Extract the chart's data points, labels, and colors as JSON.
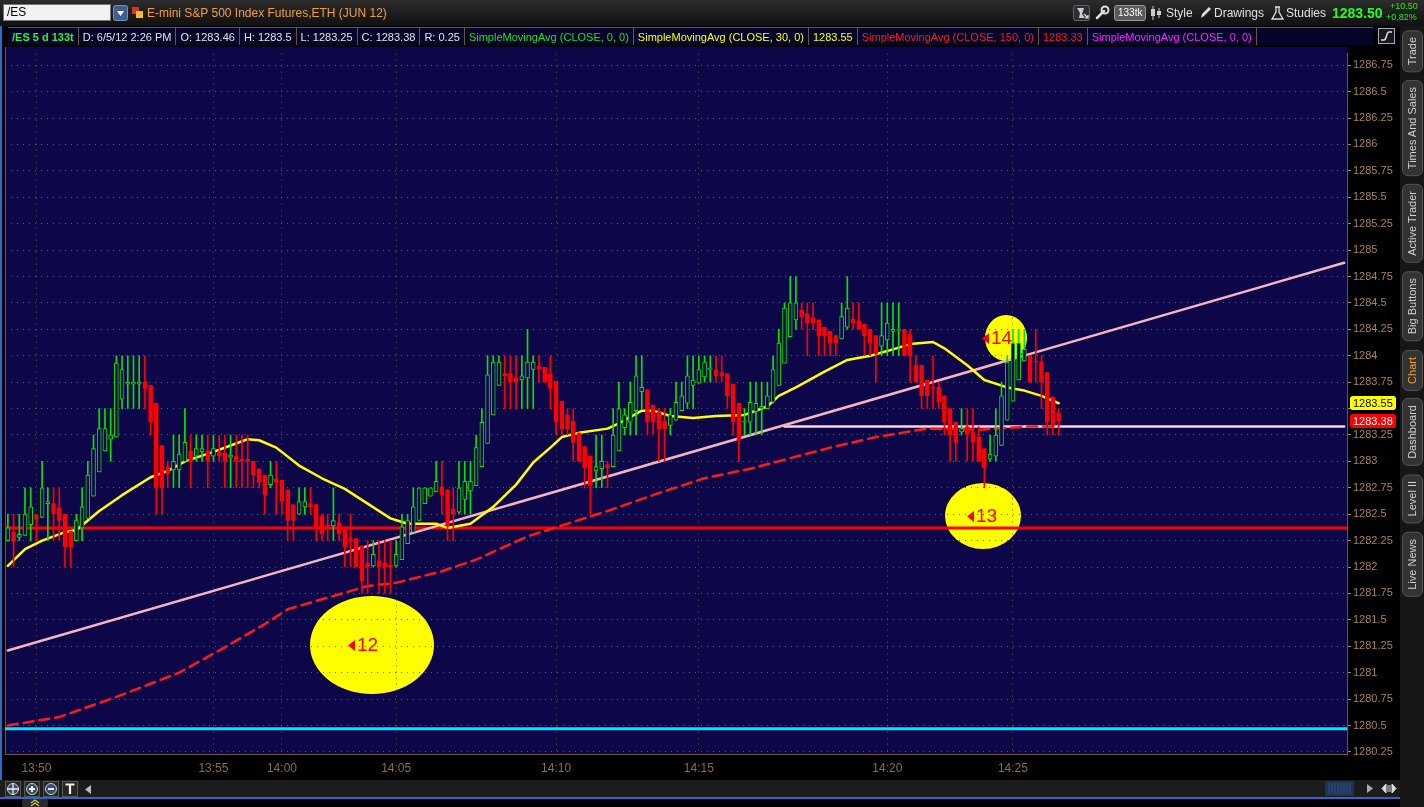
{
  "chart_data": {
    "type": "candlestick",
    "title": "E-mini S&P 500 Index Futures,ETH (JUN 12)",
    "categories": [
      null,
      null,
      null,
      null,
      null,
      "13:50",
      null,
      null,
      null,
      null,
      null,
      null,
      null,
      null,
      null,
      null,
      null,
      null,
      null,
      null,
      null,
      null,
      null,
      null,
      null,
      null,
      null,
      null,
      null,
      null,
      null,
      null,
      null,
      null,
      null,
      null,
      "13:55",
      null,
      null,
      null,
      null,
      null,
      null,
      null,
      null,
      null,
      null,
      null,
      "14:00",
      null,
      null,
      null,
      null,
      null,
      null,
      null,
      null,
      null,
      null,
      null,
      null,
      null,
      null,
      null,
      null,
      null,
      null,
      null,
      "14:05",
      null,
      null,
      null,
      null,
      null,
      null,
      null,
      null,
      null,
      null,
      null,
      null,
      null,
      null,
      null,
      null,
      null,
      null,
      null,
      null,
      null,
      null,
      null,
      null,
      null,
      null,
      null,
      "14:10",
      null,
      null,
      null,
      null,
      null,
      null,
      null,
      null,
      null,
      null,
      null,
      null,
      null,
      null,
      null,
      null,
      null,
      null,
      null,
      null,
      null,
      null,
      null,
      null,
      "14:15",
      null,
      null,
      null,
      null,
      null,
      null,
      null,
      null,
      null,
      null,
      null,
      null,
      null,
      null,
      null,
      null,
      null,
      null,
      null,
      null,
      null,
      null,
      null,
      null,
      null,
      null,
      null,
      null,
      null,
      null,
      null,
      null,
      "14:20",
      null,
      null,
      null,
      null,
      null,
      null,
      null,
      null,
      null,
      null,
      null,
      null,
      null,
      null,
      null,
      null,
      null,
      null,
      null,
      null,
      null,
      "14:25",
      null,
      null,
      null,
      null,
      null,
      null,
      null,
      null,
      null,
      null,
      null,
      null,
      null,
      null,
      null,
      null,
      null,
      null,
      null,
      null,
      null,
      null,
      null,
      null,
      null,
      null,
      null,
      null,
      null,
      null,
      null,
      null,
      null,
      null,
      null,
      null,
      null,
      null,
      null,
      null,
      null,
      null,
      null,
      null,
      null,
      null,
      null,
      null,
      null,
      null,
      null,
      null,
      null,
      null,
      null,
      null,
      null,
      null
    ],
    "ohlc": [
      [
        1282.25,
        1282.5,
        1282.25,
        1282.37
      ],
      [
        1282.33,
        1282.5,
        1282.0,
        1282.25
      ],
      [
        1282.28,
        1282.5,
        1282.25,
        1282.31
      ],
      [
        1282.3,
        1282.75,
        1282.3,
        1282.5
      ],
      [
        1282.4,
        1282.75,
        1282.25,
        1282.57
      ],
      [
        1282.49,
        1282.5,
        1282.25,
        1282.45
      ],
      [
        1282.47,
        1283.0,
        1282.47,
        1282.75
      ],
      [
        1282.6,
        1282.75,
        1282.25,
        1282.62
      ],
      [
        1282.6,
        1282.75,
        1282.25,
        1282.5
      ],
      [
        1282.56,
        1282.75,
        1282.25,
        1282.44
      ],
      [
        1282.5,
        1282.5,
        1282.0,
        1282.19
      ],
      [
        1282.34,
        1282.34,
        1282.0,
        1282.19
      ],
      [
        1282.25,
        1282.5,
        1282.25,
        1282.44
      ],
      [
        1282.37,
        1282.75,
        1282.25,
        1282.57
      ],
      [
        1282.46,
        1283.0,
        1282.46,
        1282.87
      ],
      [
        1282.67,
        1283.25,
        1282.67,
        1283.12
      ],
      [
        1282.9,
        1283.5,
        1282.9,
        1283.31
      ],
      [
        1283.1,
        1283.5,
        1283.1,
        1283.31
      ],
      [
        1283.21,
        1283.5,
        1283.0,
        1283.25
      ],
      [
        1283.23,
        1284.0,
        1283.23,
        1283.93
      ],
      [
        1283.59,
        1284.0,
        1283.5,
        1283.87
      ],
      [
        1283.73,
        1284.0,
        1283.5,
        1283.75
      ],
      [
        1283.73,
        1284.0,
        1283.5,
        1283.75
      ],
      [
        1283.73,
        1284.0,
        1283.5,
        1283.75
      ],
      [
        1283.75,
        1284.0,
        1283.5,
        1283.69
      ],
      [
        1283.72,
        1283.72,
        1283.25,
        1283.37
      ],
      [
        1283.55,
        1283.55,
        1282.5,
        1282.75
      ],
      [
        1283.15,
        1283.15,
        1282.5,
        1282.75
      ],
      [
        1282.95,
        1283.0,
        1282.75,
        1282.88
      ],
      [
        1282.92,
        1283.25,
        1282.75,
        1283.0
      ],
      [
        1282.92,
        1283.25,
        1282.75,
        1283.07
      ],
      [
        1283.0,
        1283.5,
        1283.0,
        1283.18
      ],
      [
        1283.1,
        1283.25,
        1282.75,
        1283.0
      ],
      [
        1283.05,
        1283.25,
        1283.0,
        1283.12
      ],
      [
        1283.09,
        1283.25,
        1283.0,
        1283.12
      ],
      [
        1283.1,
        1283.25,
        1282.75,
        1283.0
      ],
      [
        1283.05,
        1283.25,
        1283.0,
        1283.12
      ],
      [
        1283.09,
        1283.25,
        1283.0,
        1283.05
      ],
      [
        1283.08,
        1283.25,
        1282.75,
        1283.0
      ],
      [
        1283.04,
        1283.25,
        1282.75,
        1283.06
      ],
      [
        1283.05,
        1283.25,
        1282.75,
        1283.0
      ],
      [
        1283.02,
        1283.25,
        1282.75,
        1283.0
      ],
      [
        1283.02,
        1283.25,
        1282.75,
        1283.0
      ],
      [
        1283.0,
        1283.0,
        1282.75,
        1282.87
      ],
      [
        1282.93,
        1282.93,
        1282.75,
        1282.8
      ],
      [
        1282.87,
        1282.87,
        1282.5,
        1282.68
      ],
      [
        1282.78,
        1283.0,
        1282.75,
        1282.87
      ],
      [
        1282.83,
        1283.0,
        1282.5,
        1282.8
      ],
      [
        1282.82,
        1282.82,
        1282.5,
        1282.62
      ],
      [
        1282.73,
        1282.73,
        1282.25,
        1282.44
      ],
      [
        1282.59,
        1282.59,
        1282.25,
        1282.44
      ],
      [
        1282.5,
        1282.75,
        1282.5,
        1282.62
      ],
      [
        1282.57,
        1282.75,
        1282.5,
        1282.62
      ],
      [
        1282.6,
        1282.75,
        1282.5,
        1282.57
      ],
      [
        1282.59,
        1282.59,
        1282.25,
        1282.38
      ],
      [
        1282.48,
        1282.5,
        1282.25,
        1282.31
      ],
      [
        1282.4,
        1282.5,
        1282.25,
        1282.38
      ],
      [
        1282.39,
        1282.75,
        1282.25,
        1282.44
      ],
      [
        1282.42,
        1282.5,
        1282.25,
        1282.31
      ],
      [
        1282.36,
        1282.36,
        1282.0,
        1282.19
      ],
      [
        1282.27,
        1282.5,
        1282.0,
        1282.25
      ],
      [
        1282.27,
        1282.27,
        1282.0,
        1282.0
      ],
      [
        1282.2,
        1282.2,
        1281.75,
        1281.87
      ],
      [
        1282.04,
        1282.25,
        1281.75,
        1282.0
      ],
      [
        1282.01,
        1282.25,
        1282.0,
        1282.12
      ],
      [
        1282.06,
        1282.25,
        1281.75,
        1282.0
      ],
      [
        1282.04,
        1282.25,
        1281.75,
        1282.0
      ],
      [
        1282.02,
        1282.25,
        1281.75,
        1282.0
      ],
      [
        1282.01,
        1282.25,
        1282.0,
        1282.12
      ],
      [
        1282.07,
        1282.5,
        1282.07,
        1282.38
      ],
      [
        1282.22,
        1282.5,
        1282.22,
        1282.44
      ],
      [
        1282.33,
        1282.75,
        1282.33,
        1282.57
      ],
      [
        1282.44,
        1282.75,
        1282.44,
        1282.75
      ],
      [
        1282.6,
        1282.75,
        1282.6,
        1282.75
      ],
      [
        1282.67,
        1282.75,
        1282.67,
        1282.75
      ],
      [
        1282.71,
        1283.0,
        1282.71,
        1282.81
      ],
      [
        1282.76,
        1283.0,
        1282.5,
        1282.68
      ],
      [
        1282.73,
        1282.73,
        1282.25,
        1282.39
      ],
      [
        1282.55,
        1282.75,
        1282.25,
        1282.5
      ],
      [
        1282.52,
        1283.0,
        1282.5,
        1282.75
      ],
      [
        1282.64,
        1283.0,
        1282.5,
        1282.81
      ],
      [
        1282.72,
        1283.0,
        1282.5,
        1282.81
      ],
      [
        1282.77,
        1283.25,
        1282.77,
        1283.13
      ],
      [
        1282.95,
        1283.5,
        1282.95,
        1283.37
      ],
      [
        1283.17,
        1284.0,
        1283.17,
        1283.82
      ],
      [
        1283.44,
        1284.0,
        1283.44,
        1283.94
      ],
      [
        1283.72,
        1284.0,
        1283.72,
        1283.94
      ],
      [
        1283.83,
        1284.0,
        1283.5,
        1283.81
      ],
      [
        1283.83,
        1284.0,
        1283.5,
        1283.75
      ],
      [
        1283.79,
        1284.0,
        1283.5,
        1283.75
      ],
      [
        1283.77,
        1284.0,
        1283.5,
        1283.81
      ],
      [
        1283.79,
        1284.25,
        1283.5,
        1283.94
      ],
      [
        1283.87,
        1284.0,
        1283.5,
        1283.94
      ],
      [
        1283.9,
        1284.0,
        1283.75,
        1283.87
      ],
      [
        1283.89,
        1283.89,
        1283.75,
        1283.75
      ],
      [
        1283.83,
        1284.0,
        1283.5,
        1283.69
      ],
      [
        1283.76,
        1283.76,
        1283.25,
        1283.37
      ],
      [
        1283.57,
        1283.57,
        1283.25,
        1283.31
      ],
      [
        1283.44,
        1283.5,
        1283.25,
        1283.31
      ],
      [
        1283.38,
        1283.5,
        1283.0,
        1283.18
      ],
      [
        1283.27,
        1283.27,
        1283.0,
        1283.0
      ],
      [
        1283.14,
        1283.14,
        1282.75,
        1282.94
      ],
      [
        1283.05,
        1283.05,
        1282.5,
        1282.77
      ],
      [
        1282.91,
        1283.25,
        1282.75,
        1282.95
      ],
      [
        1282.93,
        1283.25,
        1282.75,
        1283.0
      ],
      [
        1282.97,
        1283.0,
        1282.75,
        1282.94
      ],
      [
        1282.95,
        1283.5,
        1282.95,
        1283.25
      ],
      [
        1283.1,
        1283.75,
        1283.1,
        1283.5
      ],
      [
        1283.32,
        1283.5,
        1283.25,
        1283.44
      ],
      [
        1283.37,
        1283.75,
        1283.25,
        1283.56
      ],
      [
        1283.48,
        1284.0,
        1283.25,
        1283.81
      ],
      [
        1283.66,
        1284.0,
        1283.5,
        1283.7
      ],
      [
        1283.68,
        1283.68,
        1283.25,
        1283.37
      ],
      [
        1283.53,
        1283.53,
        1283.25,
        1283.37
      ],
      [
        1283.47,
        1283.5,
        1283.0,
        1283.31
      ],
      [
        1283.38,
        1283.5,
        1283.0,
        1283.31
      ],
      [
        1283.34,
        1283.5,
        1283.25,
        1283.44
      ],
      [
        1283.39,
        1283.75,
        1283.39,
        1283.56
      ],
      [
        1283.48,
        1283.75,
        1283.48,
        1283.62
      ],
      [
        1283.55,
        1284.0,
        1283.5,
        1283.81
      ],
      [
        1283.72,
        1284.0,
        1283.5,
        1283.77
      ],
      [
        1283.74,
        1284.0,
        1283.74,
        1283.87
      ],
      [
        1283.8,
        1284.0,
        1283.75,
        1283.94
      ],
      [
        1283.87,
        1284.0,
        1283.75,
        1283.88
      ],
      [
        1283.87,
        1284.0,
        1283.75,
        1283.81
      ],
      [
        1283.84,
        1284.0,
        1283.75,
        1283.81
      ],
      [
        1283.83,
        1283.83,
        1283.5,
        1283.62
      ],
      [
        1283.73,
        1283.73,
        1283.25,
        1283.37
      ],
      [
        1283.55,
        1283.55,
        1283.0,
        1283.2
      ],
      [
        1283.37,
        1283.5,
        1283.25,
        1283.38
      ],
      [
        1283.37,
        1283.75,
        1283.25,
        1283.56
      ],
      [
        1283.47,
        1283.75,
        1283.25,
        1283.55
      ],
      [
        1283.5,
        1283.75,
        1283.25,
        1283.52
      ],
      [
        1283.5,
        1283.75,
        1283.5,
        1283.62
      ],
      [
        1283.56,
        1284.0,
        1283.56,
        1283.87
      ],
      [
        1283.72,
        1284.25,
        1283.72,
        1284.12
      ],
      [
        1283.93,
        1284.5,
        1283.93,
        1284.45
      ],
      [
        1284.18,
        1284.75,
        1284.18,
        1284.5
      ],
      [
        1284.34,
        1284.75,
        1284.25,
        1284.5
      ],
      [
        1284.43,
        1284.5,
        1284.25,
        1284.37
      ],
      [
        1284.4,
        1284.5,
        1284.0,
        1284.31
      ],
      [
        1284.36,
        1284.5,
        1284.25,
        1284.31
      ],
      [
        1284.34,
        1284.34,
        1284.0,
        1284.19
      ],
      [
        1284.27,
        1284.27,
        1284.0,
        1284.19
      ],
      [
        1284.23,
        1284.23,
        1284.0,
        1284.12
      ],
      [
        1284.19,
        1284.19,
        1284.0,
        1284.12
      ],
      [
        1284.16,
        1284.5,
        1284.16,
        1284.37
      ],
      [
        1284.27,
        1284.75,
        1284.25,
        1284.45
      ],
      [
        1284.35,
        1284.5,
        1284.25,
        1284.31
      ],
      [
        1284.33,
        1284.5,
        1284.25,
        1284.25
      ],
      [
        1284.3,
        1284.3,
        1284.0,
        1284.19
      ],
      [
        1284.25,
        1284.25,
        1284.0,
        1284.12
      ],
      [
        1284.19,
        1284.19,
        1283.75,
        1284.02
      ],
      [
        1284.09,
        1284.5,
        1284.0,
        1284.19
      ],
      [
        1284.15,
        1284.5,
        1284.0,
        1284.31
      ],
      [
        1284.23,
        1284.5,
        1284.0,
        1284.25
      ],
      [
        1284.24,
        1284.5,
        1284.0,
        1284.25
      ],
      [
        1284.25,
        1284.25,
        1284.0,
        1284.0
      ],
      [
        1284.2,
        1284.25,
        1283.75,
        1284.0
      ],
      [
        1283.91,
        1284.0,
        1283.75,
        1283.75
      ],
      [
        1283.91,
        1283.91,
        1283.5,
        1283.62
      ],
      [
        1283.77,
        1283.77,
        1283.5,
        1283.62
      ],
      [
        1283.7,
        1284.0,
        1283.5,
        1283.69
      ],
      [
        1283.7,
        1283.75,
        1283.5,
        1283.56
      ],
      [
        1283.62,
        1283.62,
        1283.25,
        1283.37
      ],
      [
        1283.5,
        1283.5,
        1283.0,
        1283.25
      ],
      [
        1283.37,
        1283.37,
        1283.0,
        1283.18
      ],
      [
        1283.28,
        1283.5,
        1283.25,
        1283.31
      ],
      [
        1283.33,
        1283.5,
        1283.0,
        1283.25
      ],
      [
        1283.28,
        1283.5,
        1283.0,
        1283.18
      ],
      [
        1283.23,
        1283.33,
        1283.0,
        1283.0
      ],
      [
        1283.12,
        1283.12,
        1282.75,
        1282.94
      ],
      [
        1283.02,
        1283.25,
        1283.0,
        1283.07
      ],
      [
        1283.05,
        1283.5,
        1283.0,
        1283.25
      ],
      [
        1283.15,
        1283.75,
        1283.15,
        1283.62
      ],
      [
        1283.39,
        1284.0,
        1283.39,
        1283.94
      ],
      [
        1283.57,
        1284.25,
        1283.57,
        1284.12
      ],
      [
        1283.77,
        1284.25,
        1283.77,
        1284.12
      ],
      [
        1283.95,
        1284.25,
        1283.95,
        1284.06
      ],
      [
        1284.0,
        1284.0,
        1283.75,
        1283.75
      ],
      [
        1283.95,
        1284.25,
        1283.75,
        1283.94
      ],
      [
        1283.94,
        1284.0,
        1283.5,
        1283.75
      ],
      [
        1283.84,
        1283.84,
        1283.25,
        1283.37
      ],
      [
        1283.61,
        1283.61,
        1283.25,
        1283.34
      ],
      [
        1283.46,
        1283.5,
        1283.25,
        1283.38
      ],
      null,
      null,
      null,
      null,
      null,
      null,
      null,
      null,
      null,
      null,
      null,
      null,
      null,
      null,
      null,
      null,
      null,
      null,
      null,
      null,
      null,
      null,
      null,
      null,
      null,
      null,
      null,
      null,
      null,
      null,
      null,
      null,
      null,
      null,
      null,
      null,
      null,
      null,
      null,
      null,
      null,
      null,
      null,
      null,
      null,
      null,
      null,
      null,
      null,
      null
    ],
    "colors": [
      "#00e600",
      "#ff0000",
      "#00e600",
      "#00e600",
      "#00e600",
      "#ff0000",
      "#00e600",
      "#00e600",
      "#ff0000",
      "#ff0000",
      "#ff0000",
      "#ff0000",
      "#00e600",
      "#00e600",
      "#00e600",
      "#00e600",
      "#00e600",
      "#00e600",
      "#00e600",
      "#00e600",
      "#00e600",
      "#00e600",
      "#00e600",
      "#00e600",
      "#ff0000",
      "#ff0000",
      "#ff0000",
      "#ff0000",
      "#ff0000",
      "#00e600",
      "#00e600",
      "#00e600",
      "#ff0000",
      "#00e600",
      "#00e600",
      "#ff0000",
      "#00e600",
      "#ff0000",
      "#ff0000",
      "#00e600",
      "#ff0000",
      "#ff0000",
      "#ff0000",
      "#ff0000",
      "#ff0000",
      "#ff0000",
      "#00e600",
      "#ff0000",
      "#ff0000",
      "#ff0000",
      "#ff0000",
      "#00e600",
      "#00e600",
      "#ff0000",
      "#ff0000",
      "#ff0000",
      "#ff0000",
      "#00e600",
      "#ff0000",
      "#ff0000",
      "#ff0000",
      "#ff0000",
      "#ff0000",
      "#ff0000",
      "#00e600",
      "#ff0000",
      "#ff0000",
      "#ff0000",
      "#00e600",
      "#00e600",
      "#00e600",
      "#00e600",
      "#00e600",
      "#00e600",
      "#00e600",
      "#00e600",
      "#ff0000",
      "#ff0000",
      "#ff0000",
      "#00e600",
      "#00e600",
      "#00e600",
      "#00e600",
      "#00e600",
      "#00e600",
      "#00e600",
      "#00e600",
      "#ff0000",
      "#ff0000",
      "#ff0000",
      "#00e600",
      "#00e600",
      "#00e600",
      "#ff0000",
      "#ff0000",
      "#ff0000",
      "#ff0000",
      "#ff0000",
      "#ff0000",
      "#ff0000",
      "#ff0000",
      "#ff0000",
      "#ff0000",
      "#00e600",
      "#00e600",
      "#ff0000",
      "#00e600",
      "#00e600",
      "#00e600",
      "#00e600",
      "#00e600",
      "#00e600",
      "#ff0000",
      "#ff0000",
      "#ff0000",
      "#ff0000",
      "#00e600",
      "#00e600",
      "#00e600",
      "#00e600",
      "#00e600",
      "#00e600",
      "#00e600",
      "#00e600",
      "#ff0000",
      "#ff0000",
      "#ff0000",
      "#ff0000",
      "#ff0000",
      "#00e600",
      "#00e600",
      "#00e600",
      "#00e600",
      "#00e600",
      "#00e600",
      "#00e600",
      "#00e600",
      "#00e600",
      "#00e600",
      "#ff0000",
      "#ff0000",
      "#ff0000",
      "#ff0000",
      "#ff0000",
      "#ff0000",
      "#ff0000",
      "#00e600",
      "#00e600",
      "#ff0000",
      "#ff0000",
      "#ff0000",
      "#ff0000",
      "#ff0000",
      "#00e600",
      "#00e600",
      "#00e600",
      "#00e600",
      "#ff0000",
      "#ff0000",
      "#ff0000",
      "#ff0000",
      "#ff0000",
      "#ff0000",
      "#ff0000",
      "#ff0000",
      "#ff0000",
      "#ff0000",
      "#00e600",
      "#ff0000",
      "#ff0000",
      "#ff0000",
      "#ff0000",
      "#00e600",
      "#00e600",
      "#00e600",
      "#00e600",
      "#00e600",
      "#00e600",
      "#00e600",
      "#ff0000",
      "#ff0000",
      "#ff0000",
      "#ff0000",
      "#ff0000",
      "#ff0000",
      null,
      null,
      null,
      null,
      null,
      null,
      null,
      null,
      null,
      null,
      null,
      null,
      null,
      null,
      null,
      null,
      null,
      null,
      null,
      null,
      null,
      null,
      null,
      null,
      null,
      null,
      null,
      null,
      null,
      null,
      null,
      null,
      null,
      null,
      null,
      null,
      null,
      null,
      null,
      null,
      null,
      null,
      null,
      null,
      null,
      null,
      null,
      null,
      null,
      null
    ],
    "series": [
      {
        "type": "line",
        "name": "SimpleMovingAvg (CLOSE, 30, 0)",
        "color": "#ffff00",
        "values": [
          1282.01,
          null,
          null,
          1282.17,
          null,
          null,
          1282.25,
          null,
          null,
          null,
          1282.33,
          null,
          1282.35,
          null,
          null,
          null,
          1282.53,
          null,
          null,
          null,
          1282.68,
          null,
          null,
          null,
          null,
          1282.85,
          null,
          null,
          1282.91,
          null,
          null,
          1283.0,
          null,
          null,
          null,
          null,
          1283.09,
          null,
          null,
          1283.15,
          null,
          null,
          1283.21,
          null,
          1283.2,
          null,
          null,
          1283.13,
          null,
          null,
          null,
          1282.96,
          null,
          null,
          null,
          1282.84,
          null,
          null,
          null,
          1282.74,
          null,
          null,
          null,
          1282.6,
          null,
          null,
          null,
          1282.46,
          null,
          null,
          1282.41,
          null,
          null,
          null,
          null,
          1282.41,
          null,
          1282.37,
          null,
          null,
          null,
          1282.41,
          null,
          null,
          null,
          1282.57,
          null,
          null,
          null,
          1282.78,
          null,
          null,
          1282.99,
          null,
          null,
          1283.13,
          null,
          1283.23,
          null,
          null,
          1283.27,
          null,
          null,
          null,
          null,
          1283.31,
          null,
          1283.36,
          null,
          null,
          null,
          1283.48,
          null,
          1283.48,
          null,
          null,
          1283.43,
          null,
          null,
          null,
          1283.41,
          null,
          null,
          null,
          1283.43,
          null,
          null,
          null,
          null,
          1283.44,
          null,
          null,
          null,
          1283.52,
          null,
          1283.62,
          null,
          null,
          1283.7,
          null,
          null,
          null,
          null,
          1283.85,
          null,
          null,
          null,
          1283.96,
          null,
          null,
          null,
          1284.0,
          null,
          null,
          null,
          1284.06,
          null,
          null,
          1284.11,
          null,
          null,
          null,
          1284.13,
          null,
          1284.07,
          null,
          null,
          null,
          1283.91,
          null,
          null,
          1283.77,
          null,
          null,
          null,
          1283.7,
          null,
          null,
          1283.67,
          null,
          null,
          1283.62,
          null,
          null,
          1283.55,
          null,
          null,
          null,
          null,
          null,
          null,
          null,
          null,
          null,
          null,
          null,
          null,
          null,
          null,
          null,
          null,
          null,
          null,
          null,
          null,
          null,
          null,
          null,
          null,
          null,
          null,
          null,
          null,
          null,
          null,
          null,
          null,
          null,
          null,
          null,
          null,
          null,
          null,
          null,
          null,
          null,
          null,
          null,
          null,
          null,
          null,
          null,
          null,
          null,
          null
        ]
      },
      {
        "type": "line",
        "name": "SimpleMovingAvg (CLOSE, 150, 0)",
        "color": "#ff1a1a",
        "line_style": "dashed",
        "values": [
          1280.5,
          null,
          null,
          null,
          null,
          null,
          null,
          null,
          null,
          1280.58,
          null,
          null,
          null,
          null,
          null,
          null,
          null,
          null,
          null,
          1280.77,
          null,
          null,
          null,
          null,
          null,
          null,
          null,
          null,
          null,
          null,
          1281.0,
          null,
          null,
          null,
          null,
          null,
          null,
          null,
          1281.24,
          null,
          null,
          null,
          null,
          null,
          null,
          1281.46,
          null,
          null,
          null,
          1281.6,
          null,
          null,
          null,
          null,
          null,
          null,
          null,
          null,
          null,
          null,
          null,
          null,
          null,
          1281.82,
          null,
          null,
          null,
          null,
          1281.85,
          null,
          null,
          null,
          null,
          null,
          null,
          null,
          1281.96,
          null,
          null,
          null,
          null,
          null,
          1282.07,
          null,
          null,
          null,
          null,
          null,
          null,
          null,
          null,
          1282.29,
          null,
          null,
          null,
          null,
          null,
          null,
          null,
          null,
          null,
          null,
          null,
          null,
          null,
          1282.53,
          null,
          null,
          null,
          null,
          null,
          null,
          null,
          null,
          1282.7,
          null,
          null,
          null,
          null,
          null,
          null,
          null,
          1282.84,
          null,
          null,
          null,
          null,
          null,
          null,
          null,
          1282.93,
          null,
          null,
          null,
          null,
          null,
          null,
          1283.03,
          null,
          null,
          null,
          null,
          null,
          null,
          1283.13,
          null,
          null,
          null,
          null,
          null,
          null,
          null,
          1283.23,
          null,
          null,
          null,
          null,
          null,
          null,
          null,
          null,
          1283.31,
          null,
          null,
          null,
          null,
          null,
          null,
          null,
          null,
          1283.3,
          null,
          null,
          null,
          null,
          null,
          null,
          null,
          null,
          1283.33,
          null,
          null,
          null,
          null,
          1283.33,
          null,
          null,
          null,
          null,
          null,
          null,
          null,
          null,
          null,
          null,
          null,
          null,
          null,
          null,
          null,
          null,
          null,
          null,
          null,
          null,
          null,
          null,
          null,
          null,
          null,
          null,
          null,
          null,
          null,
          null,
          null,
          null,
          null,
          null,
          null,
          null,
          null,
          null,
          null,
          null,
          null,
          null,
          null,
          null,
          null,
          null,
          null,
          null,
          null,
          null
        ]
      },
      {
        "type": "line",
        "color": "#f4b4c0",
        "values": [
          1281.21,
          null,
          null,
          null,
          null,
          null,
          null,
          null,
          null,
          null,
          null,
          null,
          null,
          null,
          null,
          null,
          null,
          null,
          null,
          null,
          null,
          null,
          null,
          null,
          null,
          null,
          null,
          null,
          null,
          null,
          null,
          null,
          null,
          null,
          null,
          null,
          null,
          null,
          null,
          null,
          null,
          null,
          null,
          null,
          null,
          null,
          null,
          null,
          null,
          null,
          null,
          null,
          null,
          null,
          null,
          null,
          null,
          null,
          null,
          null,
          null,
          null,
          null,
          null,
          null,
          null,
          null,
          null,
          null,
          null,
          null,
          null,
          null,
          null,
          null,
          null,
          null,
          null,
          null,
          null,
          null,
          null,
          null,
          null,
          null,
          null,
          null,
          null,
          null,
          null,
          null,
          null,
          null,
          null,
          null,
          null,
          null,
          null,
          null,
          null,
          null,
          null,
          null,
          null,
          null,
          null,
          null,
          null,
          null,
          null,
          null,
          null,
          null,
          null,
          null,
          null,
          null,
          null,
          null,
          null,
          null,
          null,
          null,
          null,
          null,
          null,
          null,
          null,
          null,
          null,
          null,
          null,
          null,
          null,
          null,
          null,
          null,
          null,
          null,
          null,
          null,
          null,
          null,
          null,
          null,
          null,
          null,
          null,
          null,
          null,
          null,
          null,
          null,
          null,
          null,
          null,
          null,
          null,
          null,
          null,
          null,
          null,
          null,
          null,
          null,
          null,
          null,
          null,
          null,
          null,
          null,
          null,
          null,
          null,
          null,
          null,
          null,
          null,
          null,
          null,
          null,
          null,
          null,
          null,
          null,
          null,
          null,
          null,
          null,
          null,
          null,
          null,
          null,
          null,
          null,
          null,
          null,
          null,
          null,
          null,
          null,
          null,
          null,
          null,
          null,
          null,
          null,
          null,
          null,
          null,
          null,
          null,
          null,
          null,
          null,
          null,
          null,
          null,
          null,
          null,
          null,
          null,
          null,
          null,
          null,
          null,
          null,
          null,
          null,
          null,
          null,
          null,
          null,
          null,
          1284.88
        ]
      },
      {
        "type": "line",
        "color": "#f8d6da",
        "values": [
          null,
          null,
          null,
          null,
          null,
          null,
          null,
          null,
          null,
          null,
          null,
          null,
          null,
          null,
          null,
          null,
          null,
          null,
          null,
          null,
          null,
          null,
          null,
          null,
          null,
          null,
          null,
          null,
          null,
          null,
          null,
          null,
          null,
          null,
          null,
          null,
          null,
          null,
          null,
          null,
          null,
          null,
          null,
          null,
          null,
          null,
          null,
          null,
          null,
          null,
          null,
          null,
          null,
          null,
          null,
          null,
          null,
          null,
          null,
          null,
          null,
          null,
          null,
          null,
          null,
          null,
          null,
          null,
          null,
          null,
          null,
          null,
          null,
          null,
          null,
          null,
          null,
          null,
          null,
          null,
          null,
          null,
          null,
          null,
          null,
          null,
          null,
          null,
          null,
          null,
          null,
          null,
          null,
          null,
          null,
          null,
          null,
          null,
          null,
          null,
          null,
          null,
          null,
          null,
          null,
          null,
          null,
          null,
          null,
          null,
          null,
          null,
          null,
          null,
          null,
          null,
          null,
          null,
          null,
          null,
          null,
          null,
          null,
          null,
          null,
          null,
          null,
          null,
          null,
          null,
          null,
          null,
          null,
          null,
          null,
          null,
          1283.33,
          null,
          null,
          null,
          null,
          null,
          null,
          null,
          null,
          null,
          null,
          null,
          null,
          null,
          null,
          null,
          null,
          null,
          null,
          null,
          null,
          null,
          null,
          null,
          null,
          null,
          null,
          null,
          null,
          null,
          null,
          null,
          null,
          null,
          null,
          null,
          null,
          null,
          null,
          null,
          null,
          null,
          null,
          null,
          null,
          null,
          null,
          null,
          null,
          null,
          null,
          null,
          null,
          null,
          null,
          null,
          null,
          null,
          null,
          null,
          null,
          null,
          null,
          null,
          null,
          null,
          null,
          null,
          null,
          null,
          null,
          null,
          null,
          null,
          null,
          null,
          null,
          null,
          null,
          null,
          null,
          null,
          null,
          null,
          null,
          null,
          null,
          null,
          null,
          null,
          null,
          null,
          null,
          null,
          null,
          null,
          null,
          null,
          1283.33
        ]
      }
    ],
    "ref_lines": [
      {
        "axis": "y",
        "value": 1282.37,
        "color": "#ff0000"
      },
      {
        "axis": "y",
        "value": 1280.47,
        "color": "#00e5ff"
      }
    ],
    "ylim": [
      1280.23,
      1286.86
    ],
    "yticks": [
      1280.25,
      1280.5,
      1280.75,
      1281,
      1281.25,
      1281.5,
      1281.75,
      1282,
      1282.25,
      1282.5,
      1282.75,
      1283,
      1283.25,
      {
        "value": 1283.5,
        "label": null
      },
      1283.75,
      1284,
      1284.25,
      1284.5,
      1284.75,
      1285,
      1285.25,
      1285.5,
      1285.75,
      1286,
      1286.25,
      1286.5,
      1286.75
    ],
    "grid": true,
    "legend": "top right",
    "annotations": [
      "/ES",
      "133tk",
      "Style",
      "Drawings",
      "Studies",
      "1283.50",
      "+10.50",
      "+0.82%",
      "/ES 5 d 133t",
      "D: 6/5/12 2:26 PM",
      "O: 1283.46",
      "H: 1283.5",
      "L: 1283.25",
      "C: 1283.38",
      "R: 0.25",
      "SimpleMovingAvg (CLOSE, 0, 0)",
      "1283.55",
      "1283.33",
      "SimpleMovingAvg (CLOSE, 0, 0)",
      "Trade",
      "Times And Sales",
      "Active Trader",
      "Big Buttons",
      "Chart",
      "Dashboard",
      "Level II",
      "Live News",
      "12",
      "13",
      "14",
      "1283.55",
      "1283.38"
    ]
  }
}
